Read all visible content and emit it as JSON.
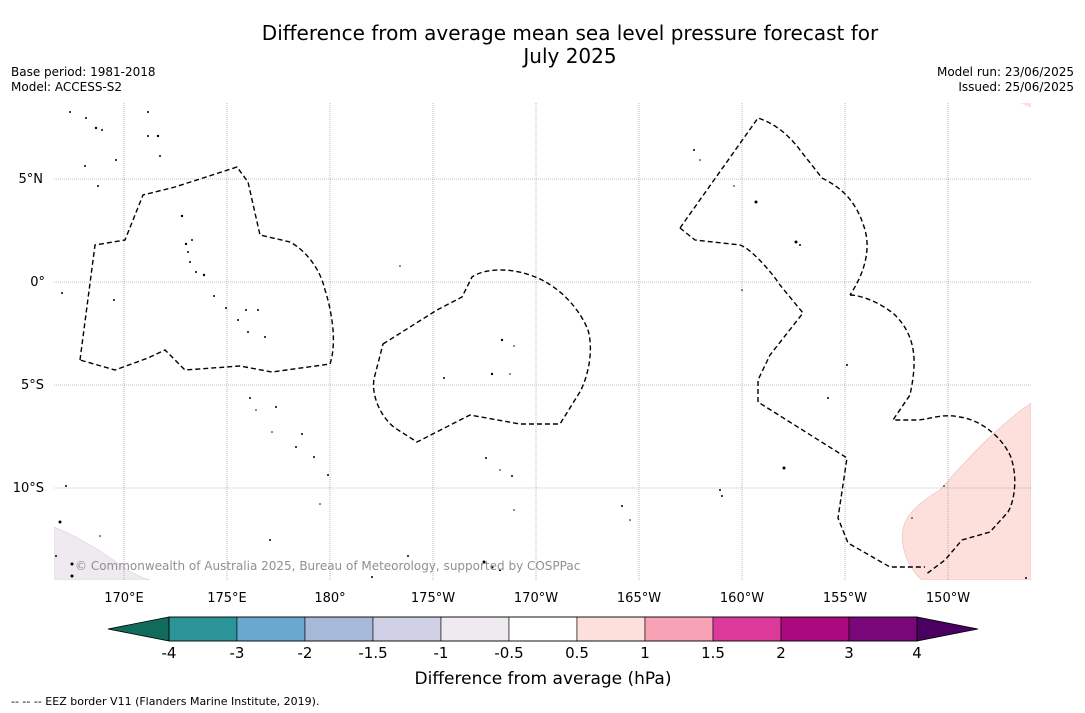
{
  "title": {
    "line1": "Difference from average mean sea level pressure forecast for",
    "line2": "July 2025"
  },
  "meta_left": {
    "base_period": "Base period: 1981-2018",
    "model": "Model: ACCESS-S2"
  },
  "meta_right": {
    "model_run": "Model run: 23/06/2025",
    "issued": "Issued: 25/06/2025"
  },
  "map": {
    "lat_labels": [
      "5°N",
      "0°",
      "5°S",
      "10°S"
    ],
    "lon_labels": [
      "170°E",
      "175°E",
      "180°",
      "175°W",
      "170°W",
      "165°W",
      "160°W",
      "155°W",
      "150°W"
    ],
    "copyright": "© Commonwealth of Australia 2025, Bureau of Meteorology, supported by COSPPac"
  },
  "colorbar": {
    "tick_labels": [
      "-4",
      "-3",
      "-2",
      "-1.5",
      "-1",
      "-0.5",
      "0.5",
      "1",
      "1.5",
      "2",
      "3",
      "4"
    ],
    "colors": [
      "#1e7f7b",
      "#2a9499",
      "#6aa8d0",
      "#a6b9d8",
      "#cfd0e6",
      "#efeaf0",
      "#ffffff",
      "#fde0dc",
      "#f7a2b5",
      "#dc3a9a",
      "#ab0a7e",
      "#7a0779"
    ],
    "under_color": "#106b5c",
    "over_color": "#4a0060",
    "label": "Difference from average (hPa)"
  },
  "footnote": "--  --  -- EEZ border V11 (Flanders Marine Institute, 2019)."
}
